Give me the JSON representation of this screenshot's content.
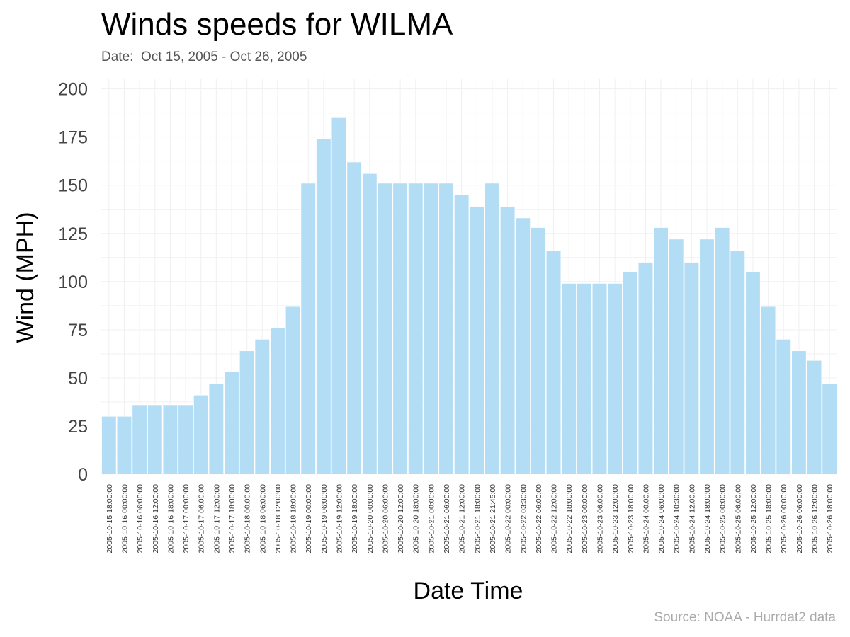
{
  "chart_data": {
    "type": "bar",
    "title": "Winds speeds for WILMA",
    "subtitle": "Date:  Oct 15, 2005 - Oct 26, 2005",
    "source": "Source: NOAA - Hurrdat2 data",
    "xlabel": "Date Time",
    "ylabel": "Wind (MPH)",
    "ylim": [
      0,
      205
    ],
    "yticks": [
      0,
      25,
      50,
      75,
      100,
      125,
      150,
      175,
      200
    ],
    "grid": true,
    "bar_color": "#b3ddf4",
    "categories": [
      "2005-10-15 18:00:00",
      "2005-10-16 00:00:00",
      "2005-10-16 06:00:00",
      "2005-10-16 12:00:00",
      "2005-10-16 18:00:00",
      "2005-10-17 00:00:00",
      "2005-10-17 06:00:00",
      "2005-10-17 12:00:00",
      "2005-10-17 18:00:00",
      "2005-10-18 00:00:00",
      "2005-10-18 06:00:00",
      "2005-10-18 12:00:00",
      "2005-10-18 18:00:00",
      "2005-10-19 00:00:00",
      "2005-10-19 06:00:00",
      "2005-10-19 12:00:00",
      "2005-10-19 18:00:00",
      "2005-10-20 00:00:00",
      "2005-10-20 06:00:00",
      "2005-10-20 12:00:00",
      "2005-10-20 18:00:00",
      "2005-10-21 00:00:00",
      "2005-10-21 06:00:00",
      "2005-10-21 12:00:00",
      "2005-10-21 18:00:00",
      "2005-10-21 21:45:00",
      "2005-10-22 00:00:00",
      "2005-10-22 03:30:00",
      "2005-10-22 06:00:00",
      "2005-10-22 12:00:00",
      "2005-10-22 18:00:00",
      "2005-10-23 00:00:00",
      "2005-10-23 06:00:00",
      "2005-10-23 12:00:00",
      "2005-10-23 18:00:00",
      "2005-10-24 00:00:00",
      "2005-10-24 06:00:00",
      "2005-10-24 10:30:00",
      "2005-10-24 12:00:00",
      "2005-10-24 18:00:00",
      "2005-10-25 00:00:00",
      "2005-10-25 06:00:00",
      "2005-10-25 12:00:00",
      "2005-10-25 18:00:00",
      "2005-10-26 00:00:00",
      "2005-10-26 06:00:00",
      "2005-10-26 12:00:00",
      "2005-10-26 18:00:00"
    ],
    "values": [
      30,
      30,
      36,
      36,
      36,
      36,
      41,
      47,
      53,
      64,
      70,
      76,
      87,
      151,
      174,
      185,
      162,
      156,
      151,
      151,
      151,
      151,
      151,
      145,
      139,
      151,
      139,
      133,
      128,
      116,
      99,
      99,
      99,
      99,
      105,
      110,
      128,
      122,
      110,
      122,
      128,
      116,
      105,
      87,
      70,
      64,
      59,
      47
    ]
  }
}
